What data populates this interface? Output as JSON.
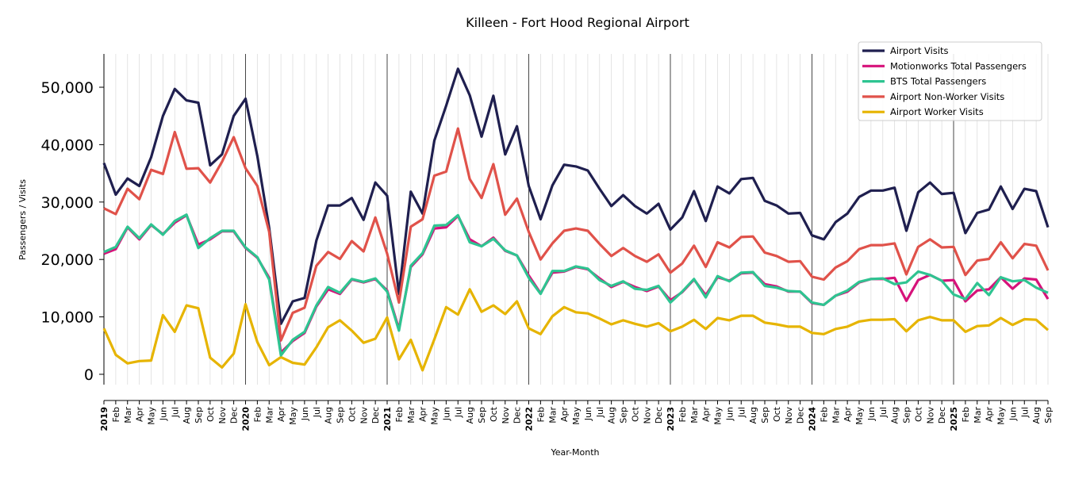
{
  "chart_data": {
    "type": "line",
    "title": "Killeen - Fort Hood Regional Airport",
    "xlabel": "Year-Month",
    "ylabel": "Passengers / Visits",
    "ylim": [
      -1800,
      55800
    ],
    "yticks": [
      0,
      10000,
      20000,
      30000,
      40000,
      50000
    ],
    "ytick_labels": [
      "0",
      "10,000",
      "20,000",
      "30,000",
      "40,000",
      "50,000"
    ],
    "x_start": "2019-01",
    "x_end": "2025-09",
    "years": [
      "2019",
      "2020",
      "2021",
      "2022",
      "2023",
      "2024",
      "2025"
    ],
    "month_labels": [
      "Jan",
      "Feb",
      "Mar",
      "Apr",
      "May",
      "Jun",
      "Jul",
      "Aug",
      "Sep",
      "Oct",
      "Nov",
      "Dec"
    ],
    "grid": "vertical monthly, darker at year start",
    "legend_position": "top-right",
    "series": [
      {
        "name": "Airport Visits",
        "color": "#1f1f4f",
        "values": [
          36800,
          31300,
          34100,
          32800,
          37800,
          45000,
          49700,
          47700,
          47300,
          36400,
          38300,
          45000,
          48000,
          38000,
          25500,
          8800,
          12700,
          13300,
          23300,
          29400,
          29400,
          30700,
          26900,
          33400,
          31100,
          14000,
          31800,
          28000,
          40700,
          46800,
          53200,
          48600,
          41400,
          48500,
          38300,
          43200,
          32800,
          27000,
          32900,
          36500,
          36200,
          35500,
          32300,
          29300,
          31200,
          29300,
          28000,
          29700,
          25200,
          27300,
          31900,
          26700,
          32700,
          31500,
          34000,
          34200,
          30200,
          29400,
          28000,
          28100,
          24200,
          23500,
          26500,
          28000,
          30900,
          32000,
          32000,
          32500,
          25000,
          31700,
          33400,
          31400,
          31600,
          24600,
          28100,
          28700,
          32700,
          28800,
          32300,
          31900,
          25600
        ]
      },
      {
        "name": "Motionworks Total Passengers",
        "color": "#d6127a",
        "values": [
          21000,
          21800,
          25600,
          23500,
          26000,
          24400,
          26400,
          27700,
          22600,
          23500,
          24900,
          24900,
          22000,
          20300,
          16800,
          3800,
          5800,
          7200,
          11800,
          14800,
          14000,
          16500,
          16000,
          16600,
          14600,
          7900,
          18700,
          20900,
          25400,
          25600,
          27600,
          23500,
          22300,
          23800,
          21500,
          20700,
          17200,
          14100,
          17700,
          17900,
          18700,
          18300,
          16700,
          15200,
          16100,
          15200,
          14500,
          15300,
          12900,
          14300,
          16500,
          13800,
          16900,
          16300,
          17600,
          17700,
          15700,
          15300,
          14400,
          14400,
          12400,
          12100,
          13700,
          14400,
          16000,
          16600,
          16600,
          16800,
          12800,
          16400,
          17300,
          16300,
          16400,
          12700,
          14600,
          14800,
          16900,
          14900,
          16700,
          16500,
          13100
        ]
      },
      {
        "name": "BTS Total Passengers",
        "color": "#2ec491",
        "values": [
          21300,
          22200,
          25700,
          23700,
          26100,
          24300,
          26700,
          27800,
          22000,
          23700,
          25000,
          25000,
          22100,
          20400,
          16500,
          3300,
          6000,
          7400,
          12000,
          15200,
          14200,
          16600,
          16100,
          16700,
          14400,
          7600,
          18900,
          21100,
          25900,
          26000,
          27700,
          23000,
          22300,
          23600,
          21600,
          20700,
          16800,
          14000,
          18000,
          18000,
          18800,
          18400,
          16400,
          15400,
          16200,
          14900,
          14700,
          15400,
          12500,
          14400,
          16600,
          13400,
          17100,
          16200,
          17700,
          17800,
          15400,
          15100,
          14500,
          14400,
          12500,
          12100,
          13700,
          14600,
          16100,
          16600,
          16700,
          15700,
          16000,
          17900,
          17300,
          16300,
          13900,
          13100,
          15900,
          13800,
          16900,
          16200,
          16400,
          15100,
          14200
        ]
      },
      {
        "name": "Airport Non-Worker Visits",
        "color": "#e0524a",
        "values": [
          28900,
          27900,
          32300,
          30500,
          35600,
          34900,
          42200,
          35800,
          35900,
          33400,
          37000,
          41300,
          35900,
          32800,
          24800,
          5900,
          10700,
          11600,
          18900,
          21300,
          20100,
          23200,
          21400,
          27300,
          21000,
          12500,
          25700,
          27000,
          34600,
          35300,
          42800,
          34000,
          30700,
          36600,
          27800,
          30600,
          24800,
          20000,
          22800,
          25000,
          25400,
          25000,
          22700,
          20600,
          22000,
          20600,
          19600,
          20900,
          17700,
          19300,
          22400,
          18700,
          23000,
          22100,
          23900,
          24000,
          21200,
          20600,
          19600,
          19700,
          17000,
          16500,
          18600,
          19700,
          21800,
          22500,
          22500,
          22800,
          17400,
          22200,
          23500,
          22100,
          22200,
          17300,
          19800,
          20100,
          23000,
          20200,
          22700,
          22400,
          18100
        ]
      },
      {
        "name": "Airport Worker Visits",
        "color": "#e6b400",
        "values": [
          8000,
          3400,
          1900,
          2300,
          2400,
          10300,
          7400,
          12000,
          11500,
          2900,
          1200,
          3600,
          12200,
          5600,
          1600,
          3000,
          2000,
          1700,
          4700,
          8200,
          9400,
          7600,
          5500,
          6200,
          9900,
          2600,
          6000,
          700,
          6100,
          11700,
          10400,
          14800,
          10900,
          12000,
          10500,
          12700,
          8000,
          7000,
          10100,
          11700,
          10800,
          10600,
          9700,
          8700,
          9400,
          8800,
          8300,
          8900,
          7500,
          8300,
          9500,
          7900,
          9800,
          9400,
          10200,
          10200,
          9000,
          8700,
          8300,
          8300,
          7200,
          7000,
          7900,
          8300,
          9200,
          9500,
          9500,
          9600,
          7500,
          9400,
          10000,
          9400,
          9400,
          7400,
          8400,
          8500,
          9800,
          8600,
          9600,
          9500,
          7700
        ]
      }
    ]
  }
}
